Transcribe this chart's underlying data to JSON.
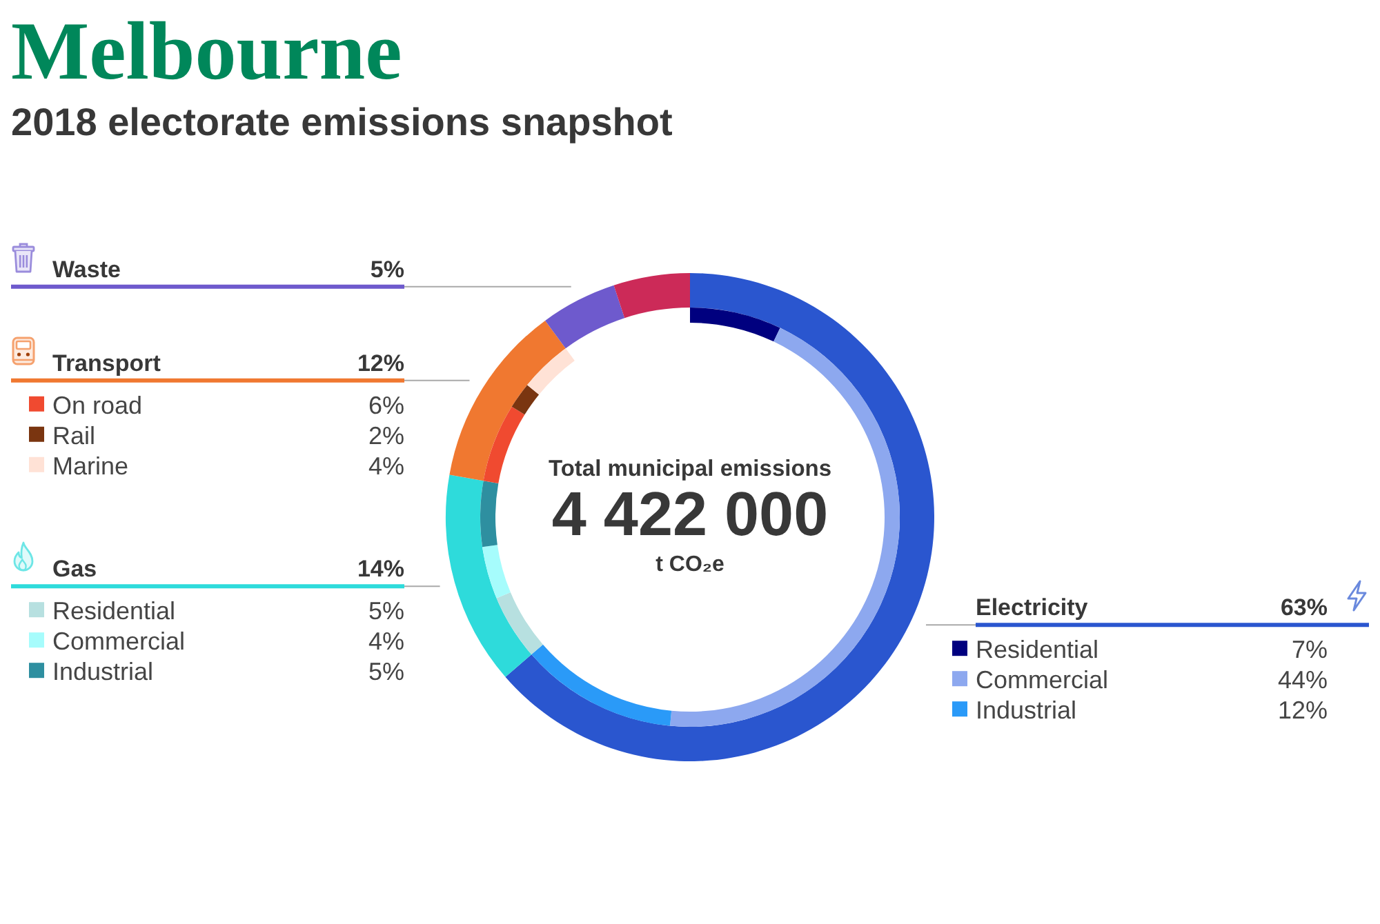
{
  "chart_data": [
    {
      "type": "donut",
      "title": "Melbourne",
      "subtitle": "2018 electorate emissions snapshot",
      "annotations": [
        "Total municipal emissions",
        "4 422 000",
        "t CO₂e"
      ],
      "categories": [
        "Electricity",
        "Gas",
        "Transport",
        "Waste",
        null
      ],
      "values": [
        63,
        14,
        12,
        5,
        5
      ],
      "colors": [
        "#2a56cf",
        "#2edbdb",
        "#f07830",
        "#6e5acd",
        "#cc2a58"
      ],
      "value_labels": [
        "63%",
        "14%",
        "12%",
        "5%",
        null
      ]
    },
    {
      "type": "donut",
      "legend": "left",
      "categories": [
        "Residential",
        "Commercial",
        "Industrial",
        "Residential",
        "Commercial",
        "Industrial",
        "On road",
        "Rail",
        "Marine"
      ],
      "values": [
        7,
        44,
        12,
        5,
        4,
        5,
        6,
        2,
        4
      ],
      "colors": [
        "#00007f",
        "#8da8ef",
        "#2a9af8",
        "#b7e0e0",
        "#a6fcfc",
        "#2e8fa0",
        "#f04a30",
        "#7a3510",
        "#ffe2d6"
      ],
      "value_labels": [
        "7%",
        "44%",
        "12%",
        "5%",
        "4%",
        "5%",
        "6%",
        "2%",
        "4%"
      ]
    }
  ]
}
